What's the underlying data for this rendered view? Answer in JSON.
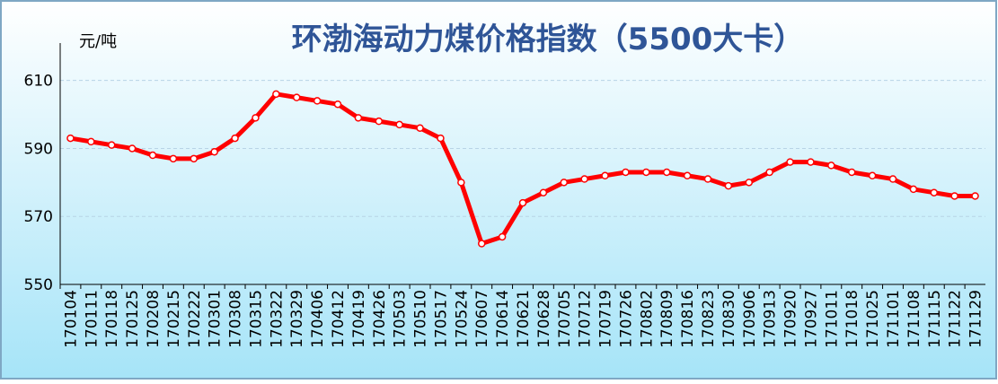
{
  "chart_data": {
    "type": "line",
    "title": "环渤海动力煤价格指数（5500大卡）",
    "y_label": "元/吨",
    "categories": [
      "170104",
      "170111",
      "170118",
      "170125",
      "170208",
      "170215",
      "170222",
      "170301",
      "170308",
      "170315",
      "170322",
      "170329",
      "170406",
      "170412",
      "170419",
      "170426",
      "170503",
      "170510",
      "170517",
      "170524",
      "170607",
      "170614",
      "170621",
      "170628",
      "170705",
      "170712",
      "170719",
      "170726",
      "170802",
      "170809",
      "170816",
      "170823",
      "170830",
      "170906",
      "170913",
      "170920",
      "170927",
      "171011",
      "171018",
      "171025",
      "171101",
      "171108",
      "171115",
      "171122",
      "171129"
    ],
    "values": [
      593,
      592,
      591,
      590,
      588,
      587,
      587,
      589,
      593,
      599,
      606,
      605,
      604,
      603,
      599,
      598,
      597,
      596,
      593,
      580,
      562,
      564,
      574,
      577,
      580,
      581,
      582,
      583,
      583,
      583,
      582,
      581,
      579,
      580,
      583,
      586,
      586,
      585,
      583,
      582,
      581,
      578,
      577,
      576,
      576
    ],
    "color": "#ff0000",
    "ylim": [
      550,
      621
    ],
    "yticks": [
      550,
      570,
      590,
      610
    ],
    "grid": true
  }
}
